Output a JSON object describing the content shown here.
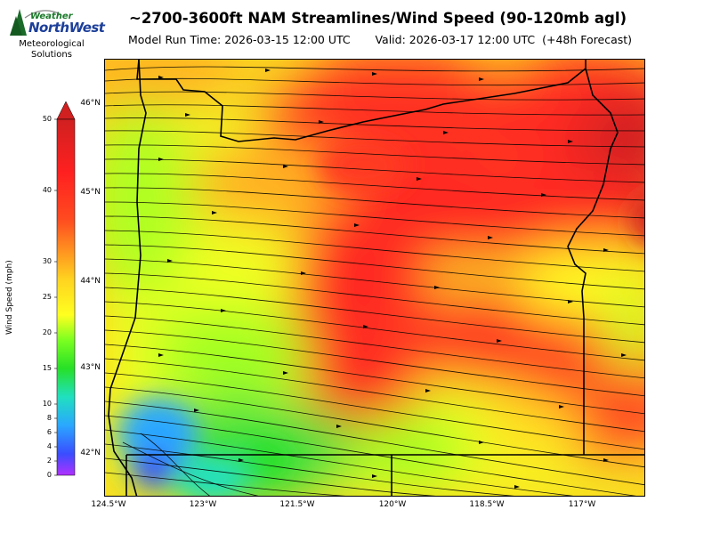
{
  "header": {
    "title": "~2700-3600ft NAM Streamlines/Wind Speed (90-120mb agl)",
    "model_run": "Model Run Time: 2026-03-15 12:00 UTC",
    "valid": "Valid: 2026-03-17 12:00 UTC  (+48h Forecast)"
  },
  "logo": {
    "word1": "Weather",
    "word2": "NorthWest",
    "line1": "Meteorological",
    "line2": "Solutions"
  },
  "colorbar": {
    "label": "Wind Speed (mph)",
    "ticks": [
      "50",
      "40",
      "30",
      "25",
      "20",
      "15",
      "10",
      "8",
      "6",
      "4",
      "2",
      "0"
    ],
    "colors": [
      "#b030ff",
      "#3a4dff",
      "#2aa7ff",
      "#20e0c0",
      "#27e027",
      "#7cff20",
      "#ffff20",
      "#ffd320",
      "#ff9b20",
      "#ff4a20",
      "#ff2020",
      "#d02020"
    ]
  },
  "map": {
    "lat_labels": [
      "46°N",
      "45°N",
      "44°N",
      "43°N",
      "42°N"
    ],
    "lon_labels": [
      "124.5°W",
      "123°W",
      "121.5°W",
      "120°W",
      "118.5°W",
      "117°W"
    ]
  },
  "chart_data": {
    "type": "heatmap",
    "variable": "Wind Speed (mph)",
    "range": [
      0,
      50
    ],
    "lat_range": [
      41.5,
      46.5
    ],
    "lon_range": [
      -124.7,
      -116.3
    ]
  }
}
